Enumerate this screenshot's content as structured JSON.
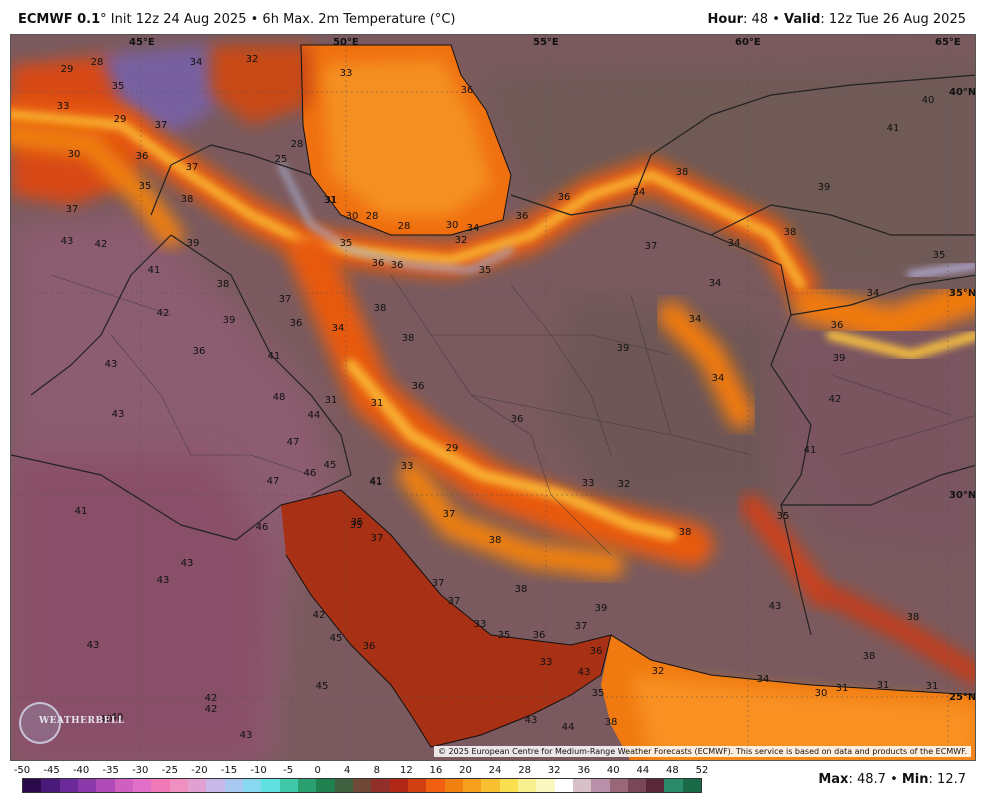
{
  "header": {
    "model": "ECMWF 0.1",
    "degree": "°",
    "init": "Init 12z 24 Aug 2025",
    "separator": "•",
    "field": "6h Max. 2m Temperature (°C)",
    "hour_label": "Hour",
    "hour_value": ": 48",
    "valid_label": "Valid",
    "valid_value": ": 12z Tue 26 Aug 2025"
  },
  "footer": {
    "max_label": "Max",
    "max_value": ": 48.7",
    "min_label": "Min",
    "min_value": ": 12.7",
    "separator": "•"
  },
  "copyright": "© 2025 European Centre for Medium-Range Weather Forecasts (ECMWF). This service is based on data and products of the ECMWF.",
  "logo_text": "WEATHERBELL",
  "colorbar": {
    "ticks": [
      "-50",
      "-45",
      "-40",
      "-35",
      "-30",
      "-25",
      "-20",
      "-15",
      "-10",
      "-5",
      "0",
      "4",
      "8",
      "12",
      "16",
      "20",
      "24",
      "28",
      "32",
      "36",
      "40",
      "44",
      "48",
      "52"
    ],
    "colors": [
      "#2a0a4a",
      "#4a1a7a",
      "#6a2a9a",
      "#8a3aaa",
      "#b04ab8",
      "#d060c0",
      "#e070c8",
      "#f07ab8",
      "#f090c0",
      "#e0a0d0",
      "#c8b8e8",
      "#a8c8f0",
      "#88d8f0",
      "#60e0e0",
      "#40c8a8",
      "#2aa070",
      "#208050",
      "#406040",
      "#704838",
      "#903028",
      "#b02818",
      "#d04010",
      "#f06010",
      "#f08010",
      "#f8a020",
      "#f8c030",
      "#f8e050",
      "#f8f090",
      "#f8f8c0",
      "#ffffff",
      "#d8c0c8",
      "#b890a8",
      "#986878",
      "#784858",
      "#582838",
      "#2a8a6a",
      "#1a6a4a"
    ]
  },
  "map": {
    "lon_labels": [
      {
        "text": "45°E"
      },
      {
        "text": "50°E"
      },
      {
        "text": "55°E"
      },
      {
        "text": "60°E"
      },
      {
        "text": "65°E"
      }
    ],
    "lat_labels": [
      {
        "text": "40°N"
      },
      {
        "text": "35°N"
      },
      {
        "text": "30°N"
      },
      {
        "text": "25°N"
      }
    ],
    "temps": [
      {
        "v": "29"
      },
      {
        "v": "28"
      },
      {
        "v": "34"
      },
      {
        "v": "32"
      },
      {
        "v": "35"
      },
      {
        "v": "33"
      },
      {
        "v": "29"
      },
      {
        "v": "37"
      },
      {
        "v": "30"
      },
      {
        "v": "36"
      },
      {
        "v": "35"
      },
      {
        "v": "37"
      },
      {
        "v": "38"
      },
      {
        "v": "37"
      },
      {
        "v": "43"
      },
      {
        "v": "42"
      },
      {
        "v": "39"
      },
      {
        "v": "41"
      },
      {
        "v": "38"
      },
      {
        "v": "37"
      },
      {
        "v": "42"
      },
      {
        "v": "39"
      },
      {
        "v": "36"
      },
      {
        "v": "36"
      },
      {
        "v": "41"
      },
      {
        "v": "43"
      },
      {
        "v": "48"
      },
      {
        "v": "43"
      },
      {
        "v": "44"
      },
      {
        "v": "47"
      },
      {
        "v": "46"
      },
      {
        "v": "45"
      },
      {
        "v": "47"
      },
      {
        "v": "41"
      },
      {
        "v": "46"
      },
      {
        "v": "41"
      },
      {
        "v": "43"
      },
      {
        "v": "43"
      },
      {
        "v": "42"
      },
      {
        "v": "43"
      },
      {
        "v": "45"
      },
      {
        "v": "42"
      },
      {
        "v": "42"
      },
      {
        "v": "40"
      },
      {
        "v": "40"
      },
      {
        "v": "43"
      },
      {
        "v": "45"
      },
      {
        "v": "36"
      },
      {
        "v": "35"
      },
      {
        "v": "37"
      },
      {
        "v": "37"
      },
      {
        "v": "37"
      },
      {
        "v": "33"
      },
      {
        "v": "35"
      },
      {
        "v": "36"
      },
      {
        "v": "37"
      },
      {
        "v": "33"
      },
      {
        "v": "36"
      },
      {
        "v": "43"
      },
      {
        "v": "35"
      },
      {
        "v": "43"
      },
      {
        "v": "44"
      },
      {
        "v": "38"
      },
      {
        "v": "32"
      },
      {
        "v": "34"
      },
      {
        "v": "30"
      },
      {
        "v": "31"
      },
      {
        "v": "31"
      },
      {
        "v": "31"
      },
      {
        "v": "39"
      },
      {
        "v": "38"
      },
      {
        "v": "38"
      },
      {
        "v": "36"
      },
      {
        "v": "31"
      },
      {
        "v": "33"
      },
      {
        "v": "41"
      },
      {
        "v": "29"
      },
      {
        "v": "36"
      },
      {
        "v": "33"
      },
      {
        "v": "32"
      },
      {
        "v": "37"
      },
      {
        "v": "38"
      },
      {
        "v": "38"
      },
      {
        "v": "38"
      },
      {
        "v": "36"
      },
      {
        "v": "35"
      },
      {
        "v": "34"
      },
      {
        "v": "31"
      },
      {
        "v": "28"
      },
      {
        "v": "28"
      },
      {
        "v": "30"
      },
      {
        "v": "34"
      },
      {
        "v": "35"
      },
      {
        "v": "36"
      },
      {
        "v": "36"
      },
      {
        "v": "34"
      },
      {
        "v": "36"
      },
      {
        "v": "36"
      },
      {
        "v": "33"
      },
      {
        "v": "38"
      },
      {
        "v": "37"
      },
      {
        "v": "34"
      },
      {
        "v": "34"
      },
      {
        "v": "39"
      },
      {
        "v": "34"
      },
      {
        "v": "34"
      },
      {
        "v": "38"
      },
      {
        "v": "39"
      },
      {
        "v": "41"
      },
      {
        "v": "40"
      },
      {
        "v": "35"
      },
      {
        "v": "34"
      },
      {
        "v": "36"
      },
      {
        "v": "39"
      },
      {
        "v": "42"
      },
      {
        "v": "41"
      },
      {
        "v": "35"
      },
      {
        "v": "43"
      },
      {
        "v": "38"
      },
      {
        "v": "38"
      },
      {
        "v": "30"
      },
      {
        "v": "31"
      },
      {
        "v": "35"
      },
      {
        "v": "32"
      },
      {
        "v": "25"
      },
      {
        "v": "28"
      },
      {
        "v": "31"
      }
    ]
  }
}
